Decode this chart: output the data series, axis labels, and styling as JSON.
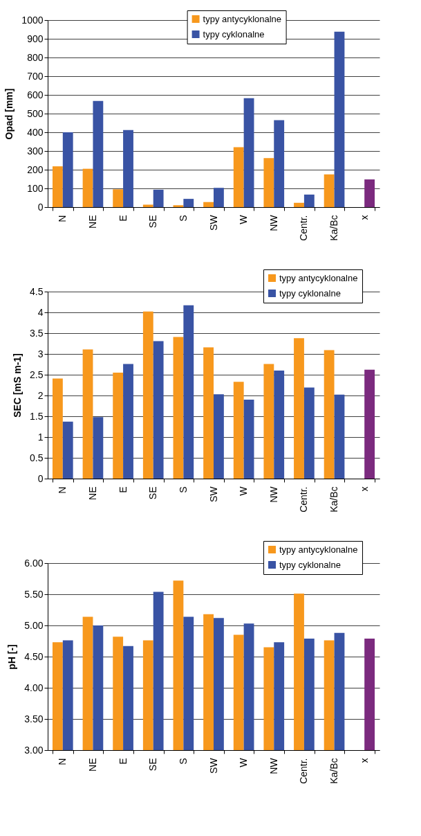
{
  "chart_data": [
    {
      "type": "bar",
      "ylabel": "Opad [mm]",
      "categories": [
        "N",
        "NE",
        "E",
        "SE",
        "S",
        "SW",
        "W",
        "NW",
        "Centr.",
        "Ka/Bc",
        "x"
      ],
      "series": [
        {
          "name": "typy antycyklonalne",
          "color": "#f7981d",
          "values": [
            218,
            205,
            95,
            13,
            10,
            27,
            320,
            262,
            23,
            175,
            null
          ]
        },
        {
          "name": "typy cyklonalne",
          "color": "#3953a4",
          "colors": [
            "#3953a4",
            "#3953a4",
            "#3953a4",
            "#3953a4",
            "#3953a4",
            "#3953a4",
            "#3953a4",
            "#3953a4",
            "#3953a4",
            "#3953a4",
            "#7b2a7e"
          ],
          "values": [
            400,
            568,
            412,
            93,
            44,
            103,
            582,
            465,
            67,
            938,
            148
          ]
        }
      ],
      "ylim": [
        0,
        1000
      ],
      "yticks": [
        0,
        100,
        200,
        300,
        400,
        500,
        600,
        700,
        800,
        900,
        1000
      ],
      "grid": "y",
      "legend": "top"
    },
    {
      "type": "bar",
      "ylabel": "SEC [mS m-1]",
      "categories": [
        "N",
        "NE",
        "E",
        "SE",
        "S",
        "SW",
        "W",
        "NW",
        "Centr.",
        "Ka/Bc",
        "x"
      ],
      "series": [
        {
          "name": "typy antycyklonalne",
          "color": "#f7981d",
          "values": [
            2.41,
            3.11,
            2.55,
            4.02,
            3.41,
            3.16,
            2.33,
            2.76,
            3.38,
            3.09,
            null
          ]
        },
        {
          "name": "typy cyklonalne",
          "color": "#3953a4",
          "colors": [
            "#3953a4",
            "#3953a4",
            "#3953a4",
            "#3953a4",
            "#3953a4",
            "#3953a4",
            "#3953a4",
            "#3953a4",
            "#3953a4",
            "#3953a4",
            "#7b2a7e"
          ],
          "values": [
            1.37,
            1.48,
            2.76,
            3.31,
            4.17,
            2.03,
            1.9,
            2.6,
            2.19,
            2.02,
            2.62
          ]
        }
      ],
      "ylim": [
        0,
        4.5
      ],
      "yticks": [
        0,
        0.5,
        1,
        1.5,
        2,
        2.5,
        3,
        3.5,
        4,
        4.5
      ],
      "grid": "y",
      "legend": "top right"
    },
    {
      "type": "bar",
      "ylabel": "pH [-]",
      "categories": [
        "N",
        "NE",
        "E",
        "SE",
        "S",
        "SW",
        "W",
        "NW",
        "Centr.",
        "Ka/Bc",
        "x"
      ],
      "series": [
        {
          "name": "typy antycyklonalne",
          "color": "#f7981d",
          "values": [
            4.73,
            5.14,
            4.82,
            4.76,
            5.72,
            5.18,
            4.85,
            4.65,
            5.51,
            4.76,
            null
          ]
        },
        {
          "name": "typy cyklonalne",
          "color": "#3953a4",
          "colors": [
            "#3953a4",
            "#3953a4",
            "#3953a4",
            "#3953a4",
            "#3953a4",
            "#3953a4",
            "#3953a4",
            "#3953a4",
            "#3953a4",
            "#3953a4",
            "#7b2a7e"
          ],
          "values": [
            4.76,
            5.0,
            4.67,
            5.54,
            5.14,
            5.12,
            5.03,
            4.73,
            4.79,
            4.88,
            4.79
          ]
        }
      ],
      "ylim": [
        3,
        6
      ],
      "yticks": [
        {
          "value": 3,
          "label": "3.00"
        },
        {
          "value": 3.5,
          "label": "3.50"
        },
        {
          "value": 4,
          "label": "4.00"
        },
        {
          "value": 4.5,
          "label": "4.50"
        },
        {
          "value": 5,
          "label": "5.00"
        },
        {
          "value": 5.5,
          "label": "5.50"
        },
        {
          "value": 6,
          "label": "6.00"
        }
      ],
      "grid": "y",
      "legend": "top right"
    }
  ]
}
